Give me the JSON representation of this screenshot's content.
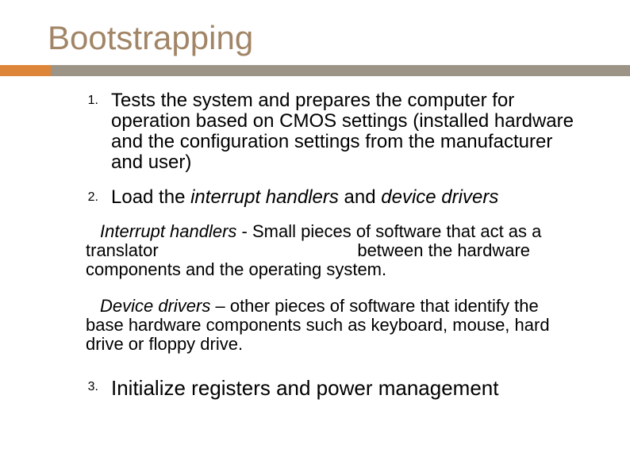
{
  "title": "Bootstrapping",
  "colors": {
    "title_color": "#a18566",
    "accent_small": "#dd8539",
    "accent_bar": "#9c9486",
    "text_color": "#000000",
    "background": "#ffffff"
  },
  "typography": {
    "title_fontsize": 42,
    "body_fontsize": 24,
    "number_fontsize": 16,
    "para_fontsize": 22
  },
  "items": [
    {
      "n": "1.",
      "text": "Tests the system and prepares the computer for operation based on CMOS settings (installed hardware and the configuration settings from the manufacturer and user)"
    },
    {
      "n": "2.",
      "plain_a": "Load the ",
      "ital_a": "interrupt handlers",
      "plain_b": " and ",
      "ital_b": "device drivers"
    },
    {
      "n": "3.",
      "text": "Initialize registers and power management"
    }
  ],
  "paragraphs": {
    "ih_label": "Interrupt handlers",
    "ih_text_a": " - Small pieces of software that act as a translator ",
    "ih_text_b": "between the hardware components and the operating system.",
    "dd_label": "Device drivers",
    "dd_text": " – other pieces of software that identify the base hardware components such as keyboard, mouse, hard drive or floppy drive."
  }
}
